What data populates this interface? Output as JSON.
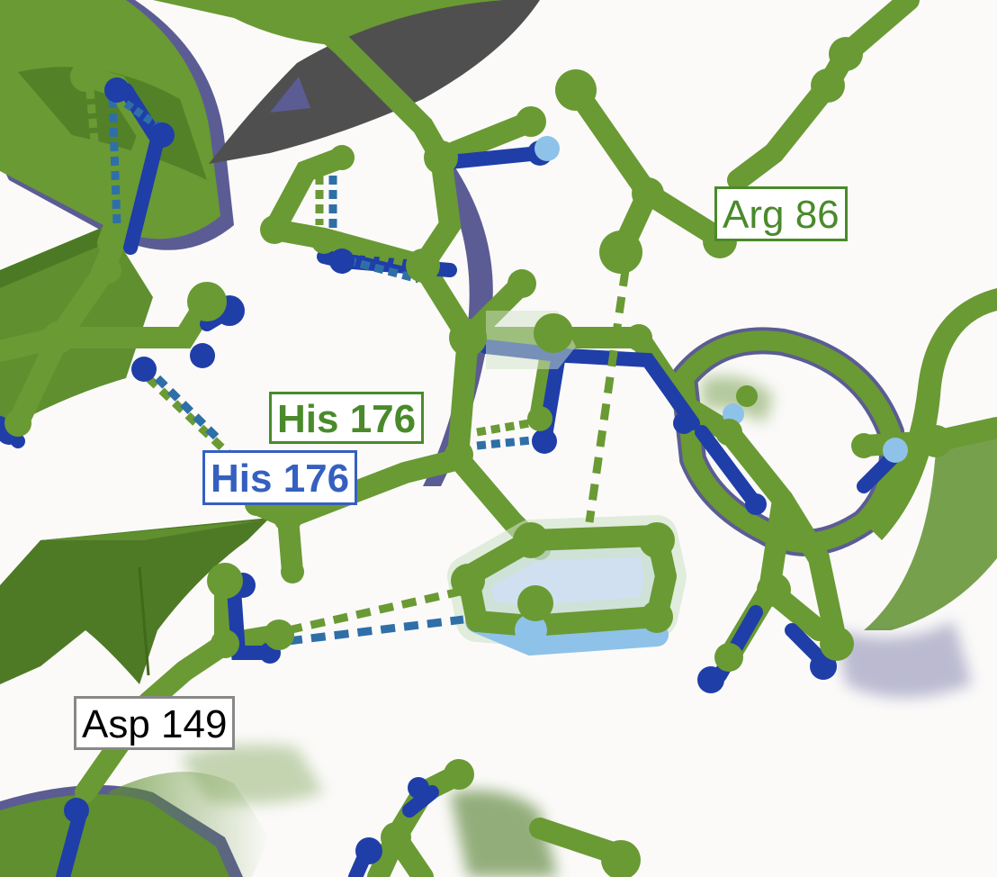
{
  "colors": {
    "background": "#fbfaf9",
    "model_green": "#5f8f2f",
    "model_green_light": "#7aa840",
    "reference_blue": "#1f3ea8",
    "reference_lightblue": "#8fc2e8",
    "ribbon_purple": "#5b5c94",
    "sheet_gray": "#4f4f4f"
  },
  "labels": [
    {
      "id": "arg86",
      "text": "Arg 86",
      "color": "#4a8a2a",
      "border": "#4a8a2a"
    },
    {
      "id": "his176_green",
      "text": "His 176",
      "color": "#4a8a2a",
      "border": "#4a8a2a"
    },
    {
      "id": "his176_blue",
      "text": "His 176",
      "color": "#3560c0",
      "border": "#3560c0"
    },
    {
      "id": "asp149",
      "text": "Asp 149",
      "color": "#000000",
      "border": "#888888"
    }
  ]
}
